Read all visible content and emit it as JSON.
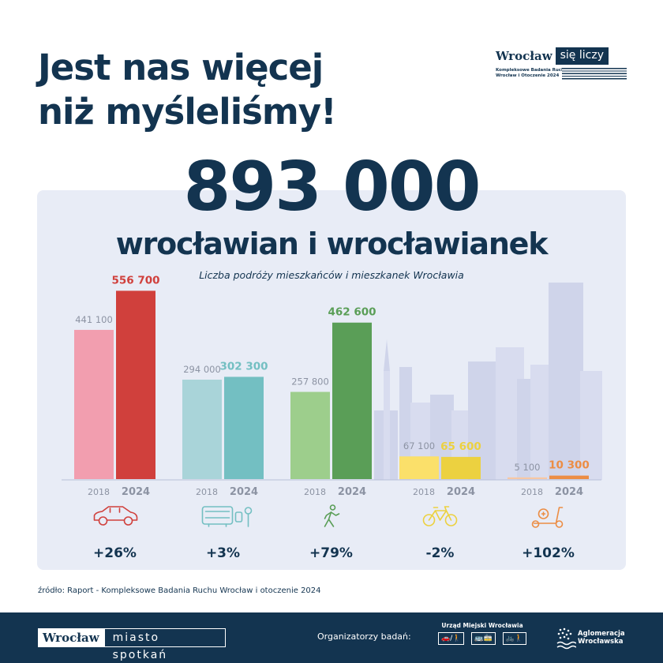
{
  "headline": {
    "line1": "Jest nas więcej",
    "line2": "niż myśleliśmy!"
  },
  "logo_top": {
    "wordmark": "Wrocław",
    "boxed": "się liczy",
    "sub_line1": "Kompleksowe Badania Ruchu",
    "sub_line2": "Wrocław i Otoczenie 2024"
  },
  "big_number": "893 000",
  "big_subtitle": "wrocławian i wrocławianek",
  "chart_data": {
    "type": "bar",
    "title": "Liczba podróży mieszkańców i mieszkanek Wrocławia",
    "categories": [
      "car",
      "public-transport",
      "walking",
      "bicycle",
      "scooter"
    ],
    "icons": [
      "car-icon",
      "bus-tram-icon",
      "pedestrian-icon",
      "bicycle-icon",
      "scooter-icon"
    ],
    "series": [
      {
        "name": "2018",
        "values": [
          441100,
          294000,
          257800,
          67100,
          5100
        ],
        "labels": [
          "441 100",
          "294 000",
          "257 800",
          "67 100",
          "5 100"
        ]
      },
      {
        "name": "2024",
        "values": [
          556700,
          302300,
          462600,
          65600,
          10300
        ],
        "labels": [
          "556 700",
          "302 300",
          "462 600",
          "65 600",
          "10 300"
        ]
      }
    ],
    "changes": [
      "+26%",
      "+3%",
      "+79%",
      "-2%",
      "+102%"
    ],
    "colors_2018": [
      "#f29eaf",
      "#a9d4d9",
      "#9dce8c",
      "#fbe06a",
      "#f7c7a4"
    ],
    "colors_2024": [
      "#d0403c",
      "#73bfc2",
      "#5a9e57",
      "#ecd140",
      "#ec8d44"
    ],
    "label_colors_2024": [
      "#d0403c",
      "#73bfc2",
      "#5a9e57",
      "#ecd140",
      "#ec8d44"
    ],
    "ylim": [
      0,
      560000
    ],
    "grid": false,
    "legend": "none"
  },
  "source": "źródło: Raport - Kompleksowe Badania Ruchu Wrocław i otoczenie 2024",
  "footer": {
    "logo_a": "Wrocław",
    "logo_b": "miasto spotkań",
    "organizers_label": "Organizatorzy badań:",
    "um_title": "Urząd Miejski Wrocławia",
    "um_icons": [
      "🚗/🚶",
      "🚌🚋",
      "🚲🚶"
    ],
    "ag_line1": "Aglomeracja",
    "ag_line2": "Wrocławska"
  }
}
